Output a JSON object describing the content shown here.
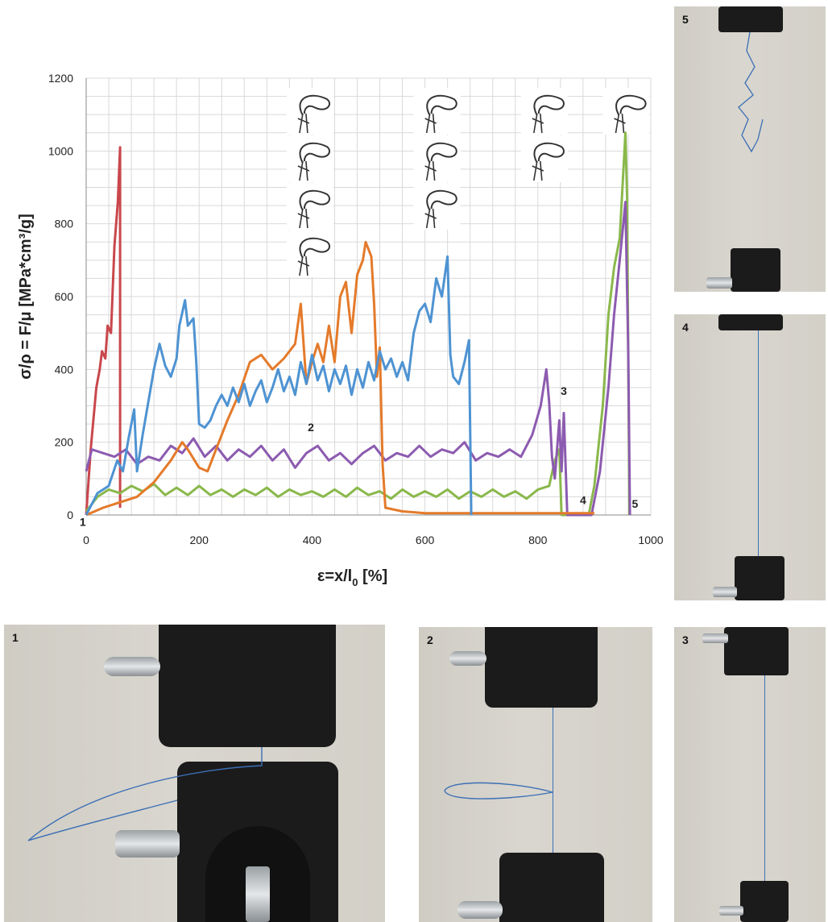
{
  "chart_data": {
    "type": "line",
    "xlabel": "ε=x/l",
    "xlabel_sub": "0",
    "xlabel_unit": " [%]",
    "ylabel": "σ/ρ = F/μ [MPa*cm³/g]",
    "xlim": [
      0,
      1000
    ],
    "ylim": [
      0,
      1200
    ],
    "x_ticks": [
      "0",
      "200",
      "400",
      "600",
      "800",
      "1000"
    ],
    "y_ticks": [
      "0",
      "200",
      "400",
      "600",
      "800",
      "1000",
      "1200"
    ],
    "grid": true,
    "series": [
      {
        "color": "#c9474c",
        "points": [
          [
            0,
            0
          ],
          [
            8,
            180
          ],
          [
            18,
            350
          ],
          [
            24,
            400
          ],
          [
            28,
            450
          ],
          [
            34,
            430
          ],
          [
            38,
            520
          ],
          [
            44,
            500
          ],
          [
            50,
            740
          ],
          [
            56,
            860
          ],
          [
            60,
            1010
          ],
          [
            60,
            20
          ]
        ]
      },
      {
        "color": "#8ab84b",
        "points": [
          [
            0,
            10
          ],
          [
            20,
            50
          ],
          [
            40,
            70
          ],
          [
            60,
            60
          ],
          [
            80,
            80
          ],
          [
            100,
            65
          ],
          [
            120,
            85
          ],
          [
            140,
            55
          ],
          [
            160,
            75
          ],
          [
            180,
            55
          ],
          [
            200,
            80
          ],
          [
            220,
            55
          ],
          [
            240,
            70
          ],
          [
            260,
            50
          ],
          [
            280,
            70
          ],
          [
            300,
            55
          ],
          [
            320,
            75
          ],
          [
            340,
            50
          ],
          [
            360,
            70
          ],
          [
            380,
            55
          ],
          [
            400,
            65
          ],
          [
            420,
            50
          ],
          [
            440,
            70
          ],
          [
            460,
            50
          ],
          [
            480,
            75
          ],
          [
            500,
            55
          ],
          [
            520,
            65
          ],
          [
            540,
            45
          ],
          [
            560,
            70
          ],
          [
            580,
            50
          ],
          [
            600,
            65
          ],
          [
            620,
            50
          ],
          [
            640,
            70
          ],
          [
            660,
            45
          ],
          [
            680,
            65
          ],
          [
            700,
            50
          ],
          [
            720,
            70
          ],
          [
            740,
            50
          ],
          [
            760,
            65
          ],
          [
            780,
            45
          ],
          [
            800,
            70
          ],
          [
            820,
            80
          ],
          [
            830,
            150
          ],
          [
            838,
            180
          ],
          [
            842,
            0
          ],
          [
            890,
            0
          ],
          [
            900,
            80
          ],
          [
            915,
            300
          ],
          [
            925,
            550
          ],
          [
            935,
            680
          ],
          [
            945,
            760
          ],
          [
            955,
            1050
          ],
          [
            958,
            870
          ],
          [
            962,
            0
          ]
        ]
      },
      {
        "color": "#8c5bb0",
        "points": [
          [
            0,
            120
          ],
          [
            10,
            180
          ],
          [
            30,
            170
          ],
          [
            50,
            160
          ],
          [
            70,
            180
          ],
          [
            90,
            140
          ],
          [
            110,
            160
          ],
          [
            130,
            150
          ],
          [
            150,
            190
          ],
          [
            170,
            170
          ],
          [
            190,
            210
          ],
          [
            210,
            160
          ],
          [
            230,
            190
          ],
          [
            250,
            150
          ],
          [
            270,
            180
          ],
          [
            290,
            160
          ],
          [
            310,
            190
          ],
          [
            330,
            150
          ],
          [
            350,
            180
          ],
          [
            370,
            130
          ],
          [
            390,
            170
          ],
          [
            410,
            190
          ],
          [
            430,
            150
          ],
          [
            450,
            170
          ],
          [
            470,
            140
          ],
          [
            490,
            170
          ],
          [
            510,
            190
          ],
          [
            530,
            150
          ],
          [
            550,
            170
          ],
          [
            570,
            160
          ],
          [
            590,
            190
          ],
          [
            610,
            160
          ],
          [
            630,
            180
          ],
          [
            650,
            170
          ],
          [
            670,
            200
          ],
          [
            690,
            150
          ],
          [
            710,
            170
          ],
          [
            730,
            160
          ],
          [
            750,
            180
          ],
          [
            770,
            160
          ],
          [
            790,
            220
          ],
          [
            805,
            300
          ],
          [
            815,
            400
          ],
          [
            820,
            310
          ],
          [
            825,
            160
          ],
          [
            830,
            100
          ],
          [
            838,
            260
          ],
          [
            842,
            120
          ],
          [
            846,
            280
          ],
          [
            852,
            0
          ],
          [
            895,
            0
          ],
          [
            910,
            120
          ],
          [
            925,
            350
          ],
          [
            935,
            550
          ],
          [
            945,
            700
          ],
          [
            955,
            860
          ],
          [
            960,
            450
          ],
          [
            963,
            0
          ]
        ]
      },
      {
        "color": "#e47a2a",
        "points": [
          [
            0,
            0
          ],
          [
            30,
            20
          ],
          [
            60,
            35
          ],
          [
            90,
            50
          ],
          [
            120,
            90
          ],
          [
            150,
            150
          ],
          [
            170,
            200
          ],
          [
            180,
            180
          ],
          [
            200,
            130
          ],
          [
            215,
            120
          ],
          [
            230,
            180
          ],
          [
            250,
            260
          ],
          [
            270,
            330
          ],
          [
            290,
            420
          ],
          [
            310,
            440
          ],
          [
            330,
            400
          ],
          [
            350,
            430
          ],
          [
            370,
            470
          ],
          [
            380,
            580
          ],
          [
            390,
            360
          ],
          [
            400,
            420
          ],
          [
            410,
            470
          ],
          [
            420,
            420
          ],
          [
            430,
            520
          ],
          [
            440,
            420
          ],
          [
            450,
            600
          ],
          [
            460,
            640
          ],
          [
            470,
            500
          ],
          [
            480,
            660
          ],
          [
            490,
            700
          ],
          [
            495,
            750
          ],
          [
            505,
            710
          ],
          [
            510,
            580
          ],
          [
            515,
            380
          ],
          [
            520,
            460
          ],
          [
            525,
            140
          ],
          [
            530,
            20
          ],
          [
            560,
            10
          ],
          [
            600,
            5
          ],
          [
            700,
            5
          ],
          [
            800,
            5
          ],
          [
            880,
            5
          ],
          [
            900,
            5
          ]
        ]
      },
      {
        "color": "#4e93d2",
        "points": [
          [
            0,
            0
          ],
          [
            20,
            60
          ],
          [
            40,
            80
          ],
          [
            55,
            150
          ],
          [
            65,
            120
          ],
          [
            75,
            210
          ],
          [
            85,
            290
          ],
          [
            90,
            120
          ],
          [
            100,
            220
          ],
          [
            110,
            310
          ],
          [
            120,
            400
          ],
          [
            130,
            470
          ],
          [
            140,
            410
          ],
          [
            150,
            380
          ],
          [
            160,
            430
          ],
          [
            165,
            520
          ],
          [
            175,
            590
          ],
          [
            180,
            520
          ],
          [
            190,
            540
          ],
          [
            195,
            420
          ],
          [
            200,
            250
          ],
          [
            210,
            240
          ],
          [
            220,
            260
          ],
          [
            230,
            300
          ],
          [
            240,
            330
          ],
          [
            250,
            300
          ],
          [
            260,
            350
          ],
          [
            270,
            310
          ],
          [
            280,
            360
          ],
          [
            290,
            300
          ],
          [
            300,
            340
          ],
          [
            310,
            370
          ],
          [
            320,
            310
          ],
          [
            330,
            350
          ],
          [
            340,
            400
          ],
          [
            350,
            340
          ],
          [
            360,
            380
          ],
          [
            370,
            330
          ],
          [
            380,
            420
          ],
          [
            390,
            360
          ],
          [
            400,
            440
          ],
          [
            410,
            370
          ],
          [
            420,
            410
          ],
          [
            430,
            340
          ],
          [
            440,
            400
          ],
          [
            450,
            360
          ],
          [
            460,
            410
          ],
          [
            470,
            330
          ],
          [
            480,
            400
          ],
          [
            490,
            350
          ],
          [
            500,
            420
          ],
          [
            510,
            370
          ],
          [
            520,
            450
          ],
          [
            530,
            400
          ],
          [
            540,
            430
          ],
          [
            550,
            380
          ],
          [
            560,
            420
          ],
          [
            570,
            370
          ],
          [
            580,
            500
          ],
          [
            590,
            560
          ],
          [
            600,
            580
          ],
          [
            610,
            530
          ],
          [
            620,
            650
          ],
          [
            630,
            600
          ],
          [
            640,
            710
          ],
          [
            645,
            440
          ],
          [
            650,
            380
          ],
          [
            660,
            360
          ],
          [
            670,
            420
          ],
          [
            678,
            480
          ],
          [
            682,
            0
          ]
        ]
      }
    ],
    "annotations": [
      {
        "text": "1",
        "x": -6,
        "y": -30
      },
      {
        "text": "2",
        "x": 398,
        "y": 230
      },
      {
        "text": "3",
        "x": 846,
        "y": 330
      },
      {
        "text": "4",
        "x": 880,
        "y": 30
      },
      {
        "text": "5",
        "x": 972,
        "y": 20
      }
    ],
    "knot_groups": [
      {
        "x": 395,
        "count": 4
      },
      {
        "x": 620,
        "count": 3
      },
      {
        "x": 810,
        "count": 2
      },
      {
        "x": 955,
        "count": 1
      }
    ]
  },
  "photos": [
    {
      "label": "5"
    },
    {
      "label": "4"
    },
    {
      "label": "1"
    },
    {
      "label": "2"
    },
    {
      "label": "3"
    }
  ]
}
